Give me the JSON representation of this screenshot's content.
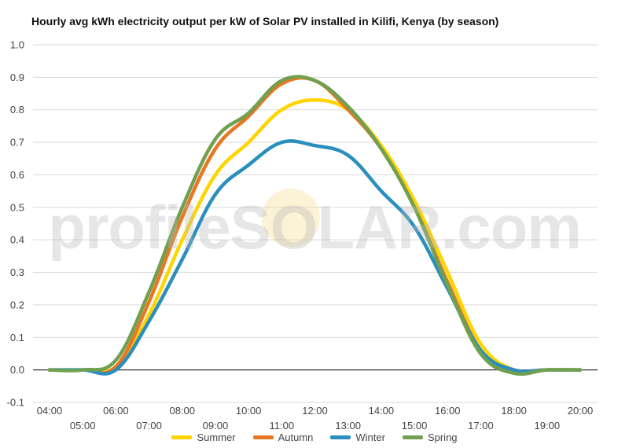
{
  "chart_data": {
    "type": "line",
    "title": "Hourly avg kWh electricity output per kW of Solar PV installed in Kilifi, Kenya (by season)",
    "xlabel": "",
    "ylabel": "",
    "x": [
      "04:00",
      "05:00",
      "06:00",
      "07:00",
      "08:00",
      "09:00",
      "10:00",
      "11:00",
      "12:00",
      "13:00",
      "14:00",
      "15:00",
      "16:00",
      "17:00",
      "18:00",
      "19:00",
      "20:00"
    ],
    "ylim": [
      -0.1,
      1.0
    ],
    "yticks": [
      "1.0",
      "0.9",
      "0.8",
      "0.7",
      "0.6",
      "0.5",
      "0.4",
      "0.3",
      "0.2",
      "0.1",
      "0.0",
      "-0.1"
    ],
    "grid": true,
    "legend_position": "bottom",
    "series": [
      {
        "name": "Summer",
        "color": "#ffd400",
        "values": [
          0,
          0,
          0.01,
          0.17,
          0.4,
          0.6,
          0.7,
          0.8,
          0.83,
          0.8,
          0.69,
          0.52,
          0.3,
          0.08,
          0.0,
          0.0,
          0.0
        ]
      },
      {
        "name": "Autumn",
        "color": "#e87722",
        "values": [
          0,
          0,
          0.01,
          0.21,
          0.47,
          0.68,
          0.78,
          0.88,
          0.89,
          0.8,
          0.68,
          0.5,
          0.27,
          0.06,
          0.0,
          0.0,
          0.0
        ]
      },
      {
        "name": "Winter",
        "color": "#2a8fbd",
        "values": [
          0,
          0,
          0.0,
          0.15,
          0.34,
          0.54,
          0.63,
          0.7,
          0.69,
          0.66,
          0.55,
          0.44,
          0.25,
          0.06,
          0.0,
          0.0,
          0.0
        ]
      },
      {
        "name": "Spring",
        "color": "#70a050",
        "values": [
          0,
          0,
          0.03,
          0.24,
          0.5,
          0.71,
          0.79,
          0.89,
          0.89,
          0.81,
          0.68,
          0.5,
          0.26,
          0.05,
          -0.01,
          0.0,
          0.0
        ]
      }
    ]
  },
  "watermark": {
    "text": "profileSOLAR.com"
  }
}
